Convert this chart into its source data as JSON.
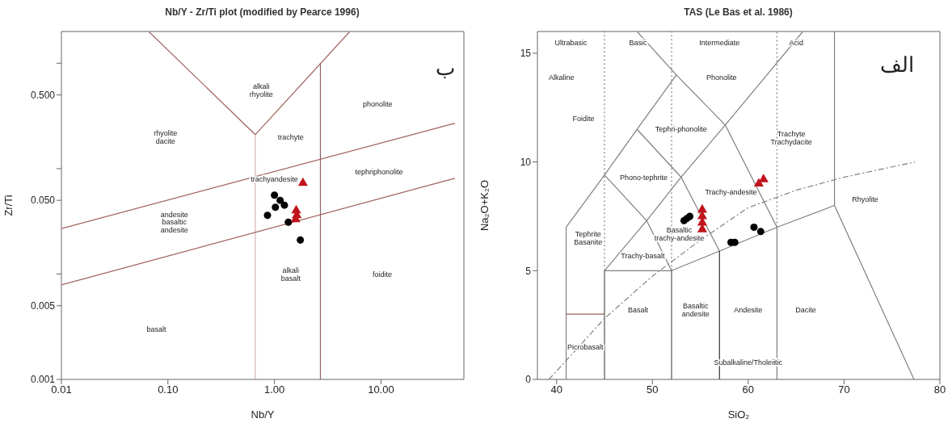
{
  "chart_data": [
    {
      "type": "scatter",
      "title": "Nb/Y - Zr/Ti plot (modified by Pearce 1996)",
      "xlabel": "Nb/Y",
      "ylabel": "Zr/Ti",
      "log": "xy",
      "xlim": [
        0.01,
        60
      ],
      "ylim": [
        0.001,
        2
      ],
      "xticks": [
        {
          "value": 0.01,
          "label": "0.01"
        },
        {
          "value": 0.1,
          "label": "0.10"
        },
        {
          "value": 1,
          "label": "1.00"
        },
        {
          "value": 10,
          "label": "10.00"
        }
      ],
      "yticks": [
        {
          "value": 0.001,
          "label": "0.001"
        },
        {
          "value": 0.005,
          "label": "0.005"
        },
        {
          "value": 0.01,
          "label": null
        },
        {
          "value": 0.05,
          "label": "0.050"
        },
        {
          "value": 0.1,
          "label": null
        },
        {
          "value": 0.5,
          "label": "0.500"
        },
        {
          "value": 1,
          "label": null
        }
      ],
      "series": [
        {
          "type": "line",
          "x": [
            0.066,
            0.66
          ],
          "values": [
            2,
            0.21
          ],
          "color": "#a0605a",
          "line_style": "solid"
        },
        {
          "type": "line",
          "x": [
            0.66,
            5.1
          ],
          "values": [
            0.21,
            2
          ],
          "color": "#a0605a",
          "line_style": "solid"
        },
        {
          "type": "line",
          "x": [
            0.66,
            0.66
          ],
          "values": [
            0.21,
            0.001
          ],
          "color": "#d9b3b3",
          "line_style": "solid"
        },
        {
          "type": "line",
          "x": [
            2.7,
            2.7
          ],
          "values": [
            1.0,
            0.001
          ],
          "color": "#8c6060",
          "line_style": "solid"
        },
        {
          "type": "line",
          "x": [
            0.01,
            49.5
          ],
          "values": [
            0.027,
            0.27
          ],
          "color": "#a0605a",
          "line_style": "solid"
        },
        {
          "type": "line",
          "x": [
            0.01,
            49.5
          ],
          "values": [
            0.0079,
            0.081
          ],
          "color": "#a0605a",
          "line_style": "solid"
        },
        {
          "type": "scatter",
          "marker": "circle",
          "color": "#000000",
          "x": [
            1.0,
            1.13,
            1.02,
            1.24,
            0.86,
            1.35,
            1.75
          ],
          "values": [
            0.056,
            0.05,
            0.043,
            0.045,
            0.036,
            0.031,
            0.021
          ]
        },
        {
          "type": "scatter",
          "marker": "triangle",
          "color": "#c0141c",
          "x": [
            1.85,
            1.6,
            1.62,
            1.58
          ],
          "values": [
            0.073,
            0.04,
            0.036,
            0.033
          ]
        }
      ],
      "annotations": [
        "alkali rhyolite",
        "rhyolite dacite",
        "trachyte",
        "phonolite",
        "tephriphonolite",
        "trachyandesite",
        "andesite basaltic andesite",
        "alkali basalt",
        "foidite",
        "basalt",
        "ب"
      ]
    },
    {
      "type": "scatter",
      "title": "TAS (Le Bas et al. 1986)",
      "xlabel": "SiO₂",
      "ylabel": "Na₂O+K₂O",
      "xlim": [
        38,
        80
      ],
      "ylim": [
        0,
        16
      ],
      "xticks": [
        40,
        50,
        60,
        70,
        80
      ],
      "yticks": [
        0,
        5,
        10,
        15
      ],
      "series": [
        {
          "type": "line",
          "x": [
            41,
            41,
            45,
            48.4,
            52.5
          ],
          "values": [
            0,
            7,
            9.4,
            11.5,
            14
          ],
          "color": "#7f7f7f",
          "line_style": "solid"
        },
        {
          "type": "line",
          "x": [
            48.4,
            52.5,
            57.6,
            63
          ],
          "values": [
            16,
            14,
            11.7,
            7
          ],
          "color": "#7f7f7f",
          "line_style": "solid"
        },
        {
          "type": "line",
          "x": [
            45,
            49.4,
            53,
            57.6,
            61,
            65.7
          ],
          "values": [
            5,
            7.3,
            9.3,
            11.7,
            13.5,
            16
          ],
          "color": "#7f7f7f",
          "line_style": "solid"
        },
        {
          "type": "line",
          "x": [
            45,
            49.4,
            52
          ],
          "values": [
            9.4,
            7.3,
            5
          ],
          "color": "#7f7f7f",
          "line_style": "solid"
        },
        {
          "type": "line",
          "x": [
            48.4,
            53,
            57
          ],
          "values": [
            11.5,
            9.3,
            5.9
          ],
          "color": "#7f7f7f",
          "line_style": "solid"
        },
        {
          "type": "line",
          "x": [
            45,
            52,
            57,
            63,
            69
          ],
          "values": [
            5,
            5,
            5.9,
            7,
            8
          ],
          "color": "#7f7f7f",
          "line_style": "solid"
        },
        {
          "type": "line",
          "x": [
            45,
            45
          ],
          "values": [
            0,
            5
          ],
          "color": "#555555",
          "line_style": "solid"
        },
        {
          "type": "line",
          "x": [
            52,
            52
          ],
          "values": [
            0,
            5
          ],
          "color": "#555555",
          "line_style": "solid"
        },
        {
          "type": "line",
          "x": [
            57,
            57
          ],
          "values": [
            0,
            5.9
          ],
          "color": "#333333",
          "line_style": "solid"
        },
        {
          "type": "line",
          "x": [
            63,
            63
          ],
          "values": [
            0,
            7
          ],
          "color": "#7f7f7f",
          "line_style": "solid"
        },
        {
          "type": "line",
          "x": [
            69,
            69,
            77.3
          ],
          "values": [
            16,
            8,
            0
          ],
          "color": "#7f7f7f",
          "line_style": "solid"
        },
        {
          "type": "line",
          "x": [
            41,
            45
          ],
          "values": [
            3,
            3
          ],
          "color": "#a0605a",
          "line_style": "solid"
        },
        {
          "type": "line",
          "x": [
            45,
            45
          ],
          "values": [
            5,
            16
          ],
          "color": "#7f7f7f",
          "line_style": "dotted"
        },
        {
          "type": "line",
          "x": [
            52,
            52
          ],
          "values": [
            5,
            16
          ],
          "color": "#7f7f7f",
          "line_style": "dotted"
        },
        {
          "type": "line",
          "x": [
            63,
            63
          ],
          "values": [
            7,
            16
          ],
          "color": "#7f7f7f",
          "line_style": "dotted"
        },
        {
          "type": "line",
          "x": [
            39.2,
            45,
            50,
            55,
            60,
            65,
            70,
            77.4
          ],
          "values": [
            0,
            2.8,
            4.75,
            6.4,
            7.9,
            8.7,
            9.3,
            10
          ],
          "color": "#7f7f7f",
          "line_style": "dashed"
        },
        {
          "type": "scatter",
          "marker": "circle",
          "color": "#000000",
          "x": [
            53.3,
            53.6,
            53.9,
            58.2,
            58.6,
            60.6,
            61.3
          ],
          "values": [
            7.3,
            7.4,
            7.5,
            6.3,
            6.3,
            7.0,
            6.8
          ]
        },
        {
          "type": "scatter",
          "marker": "triangle",
          "color": "#c0141c",
          "x": [
            55.2,
            55.2,
            55.2,
            55.2,
            61.1,
            61.6
          ],
          "values": [
            7.8,
            7.5,
            7.2,
            6.9,
            9.0,
            9.2
          ]
        }
      ],
      "annotations": [
        "Ultrabasic",
        "Basic",
        "Intermediate",
        "Acid",
        "Alkaline",
        "Phonolite",
        "Foidite",
        "Tephri-phonolite",
        "Trachyte Trachydacite",
        "Phono-tephrite",
        "Trachy-andesite",
        "Tephrite Basanite",
        "Basaltic trachy-andesite",
        "Trachy-basalt",
        "Rhyolite",
        "Picrobasalt",
        "Basalt",
        "Basaltic andesite",
        "Andesite",
        "Dacite",
        "Subalkaline/Tholeiitic",
        "الف"
      ]
    }
  ]
}
